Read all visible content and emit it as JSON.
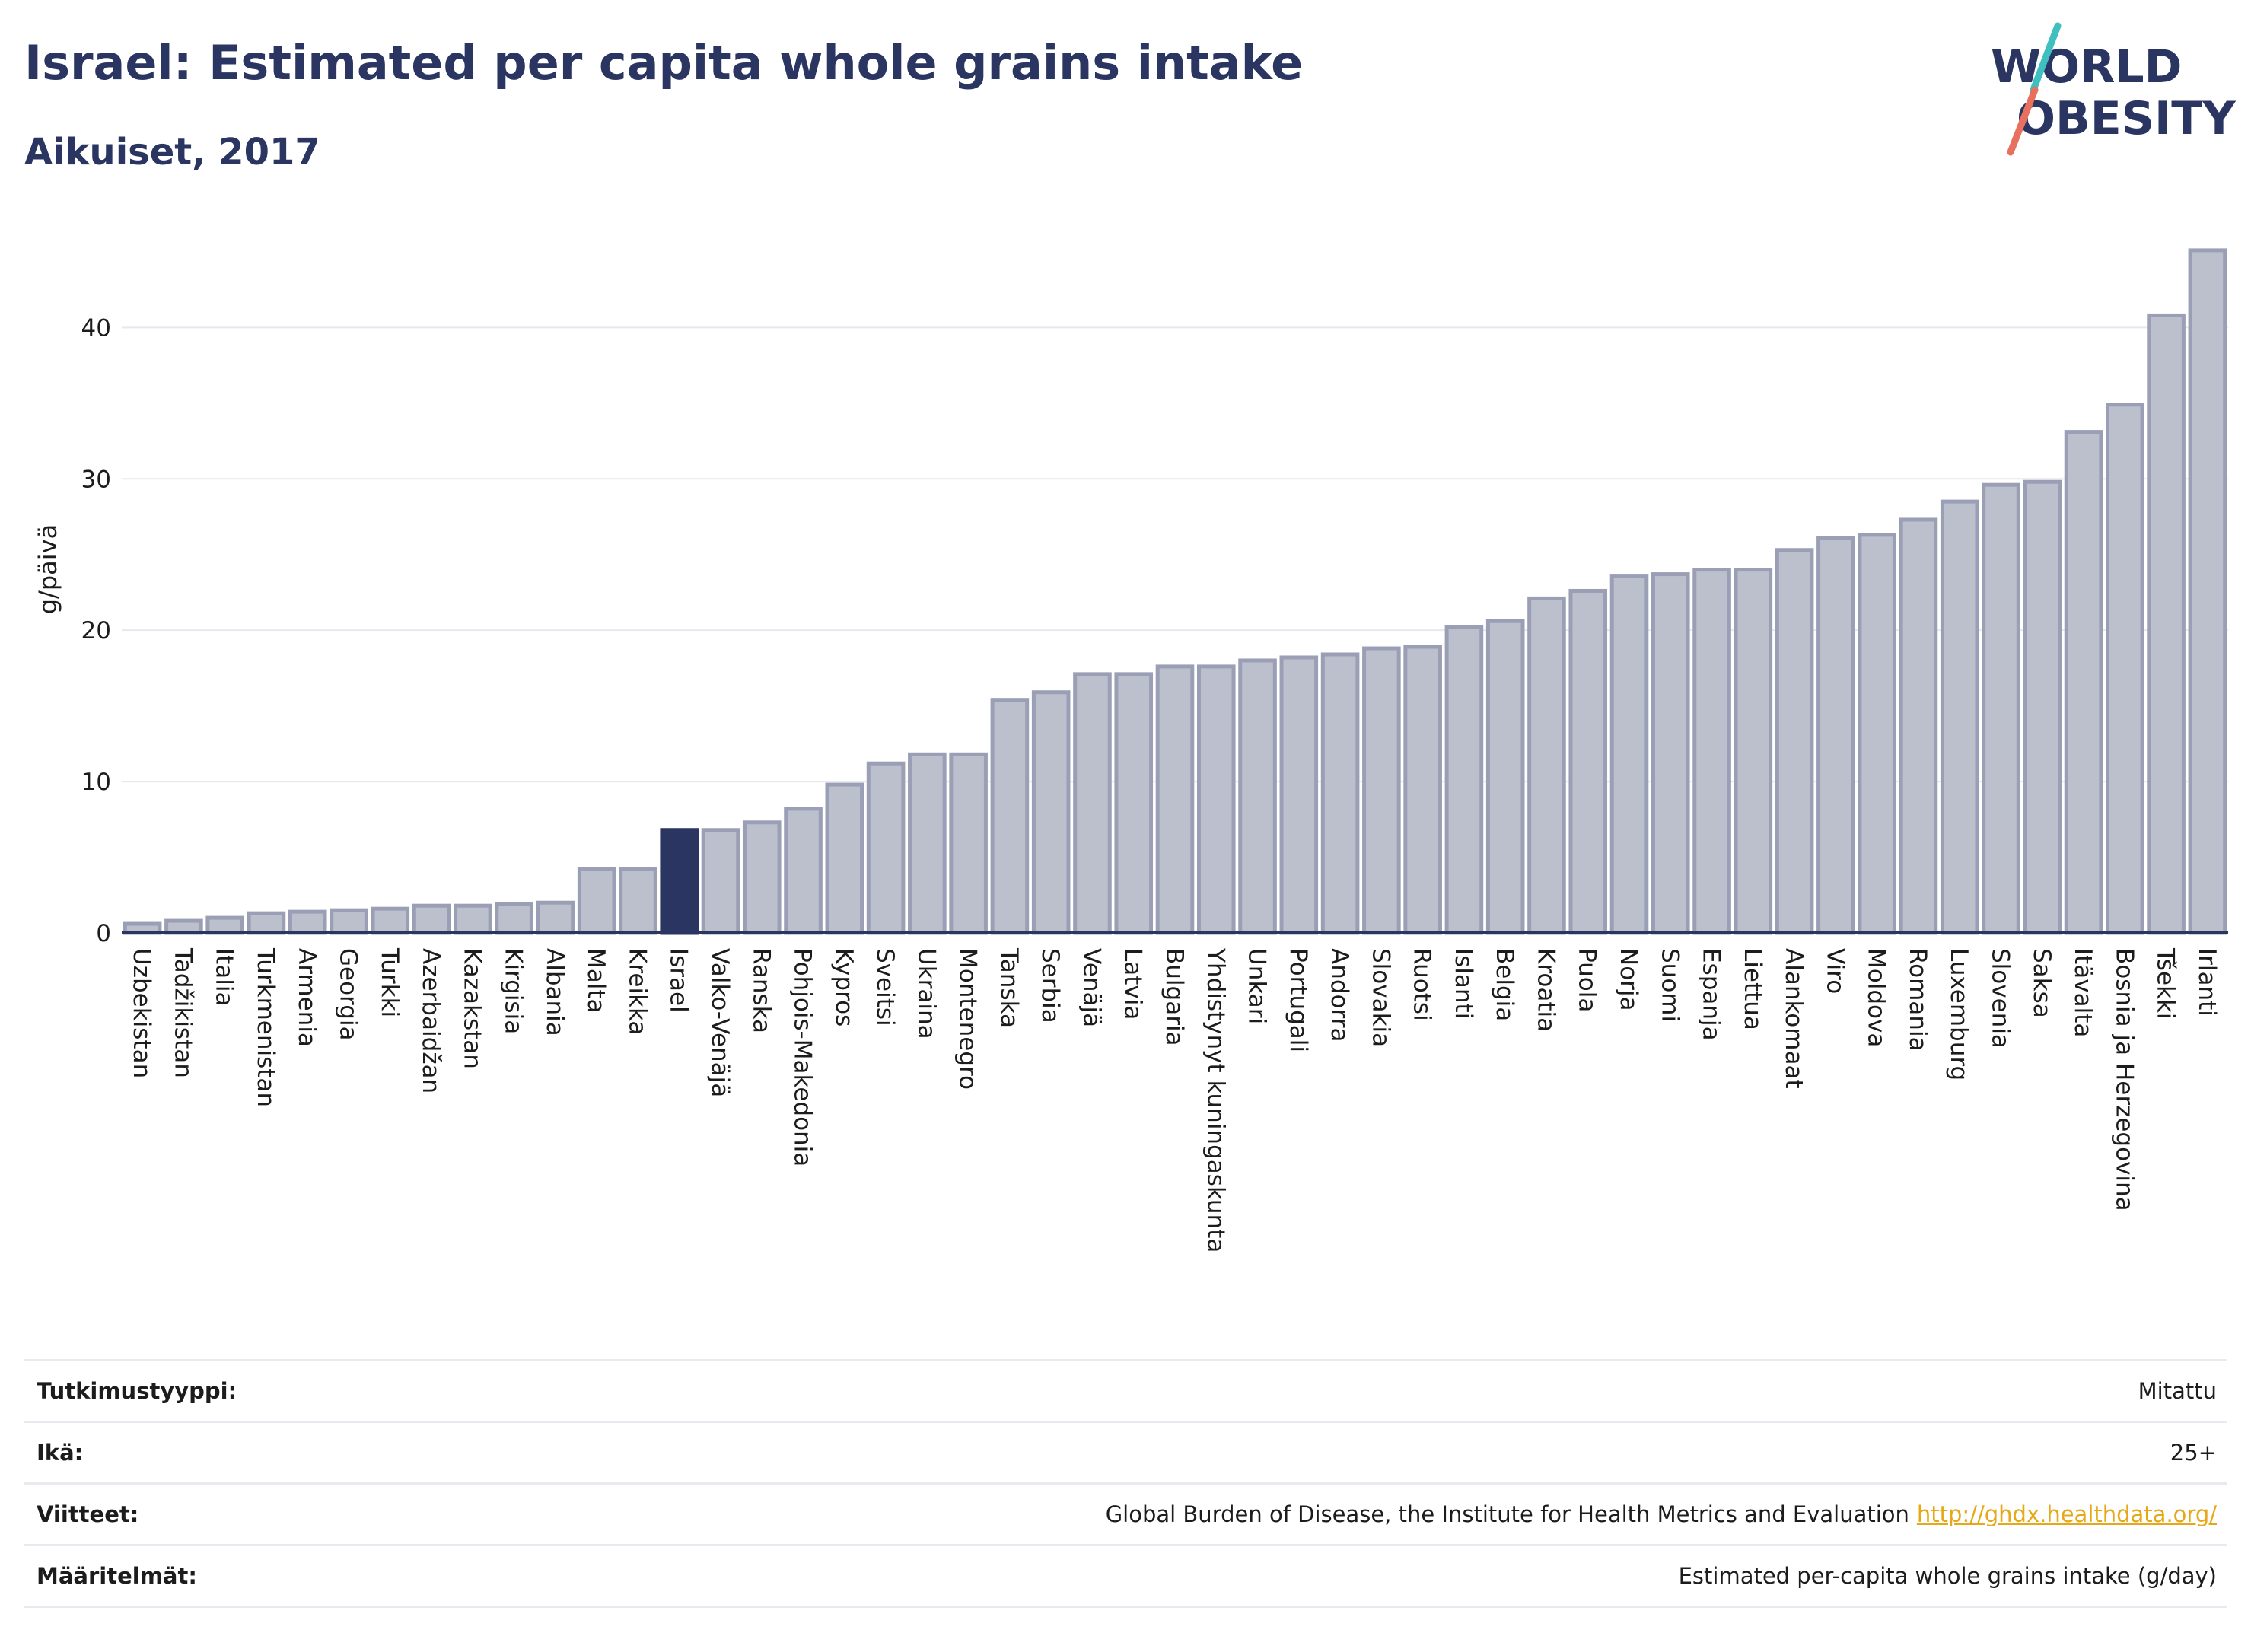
{
  "header": {
    "title": "Israel: Estimated per capita whole grains intake",
    "subtitle": "Aikuiset, 2017"
  },
  "logo": {
    "line1": "WORLD",
    "line2": "OBESITY"
  },
  "colors": {
    "highlight": "#2a3561",
    "bar_fill": "#bcc0cc",
    "bar_stroke": "#9a9fb6",
    "text": "#2a3561",
    "logo_teal": "#3fbfc0",
    "logo_coral": "#e8705f",
    "link": "#e6a817"
  },
  "chart_data": {
    "type": "bar",
    "ylabel": "g/päivä",
    "xlabel": "",
    "ylim": [
      0,
      46
    ],
    "yticks": [
      0,
      10,
      20,
      30,
      40
    ],
    "grid": true,
    "highlight": "Israel",
    "categories": [
      "Uzbekistan",
      "Tadžikistan",
      "Italia",
      "Turkmenistan",
      "Armenia",
      "Georgia",
      "Turkki",
      "Azerbaidžan",
      "Kazakstan",
      "Kirgisia",
      "Albania",
      "Malta",
      "Kreikka",
      "Israel",
      "Valko-Venäjä",
      "Ranska",
      "Pohjois-Makedonia",
      "Kypros",
      "Sveitsi",
      "Ukraina",
      "Montenegro",
      "Tanska",
      "Serbia",
      "Venäjä",
      "Latvia",
      "Bulgaria",
      "Yhdistynyt kuningaskunta",
      "Unkari",
      "Portugali",
      "Andorra",
      "Slovakia",
      "Ruotsi",
      "Islanti",
      "Belgia",
      "Kroatia",
      "Puola",
      "Norja",
      "Suomi",
      "Espanja",
      "Liettua",
      "Alankomaat",
      "Viro",
      "Moldova",
      "Romania",
      "Luxemburg",
      "Slovenia",
      "Saksa",
      "Itävalta",
      "Bosnia ja Herzegovina",
      "Tšekki",
      "Irlanti"
    ],
    "values": [
      0.6,
      0.8,
      1.0,
      1.3,
      1.4,
      1.5,
      1.6,
      1.8,
      1.8,
      1.9,
      2.0,
      4.2,
      4.2,
      6.8,
      6.8,
      7.3,
      8.2,
      9.8,
      11.2,
      11.8,
      11.8,
      15.4,
      15.9,
      17.1,
      17.1,
      17.6,
      17.6,
      18.0,
      18.2,
      18.4,
      18.8,
      18.9,
      20.2,
      20.6,
      22.1,
      22.6,
      23.6,
      23.7,
      24.0,
      24.0,
      25.3,
      26.1,
      26.3,
      27.3,
      28.5,
      29.6,
      29.8,
      33.1,
      34.9,
      40.8,
      45.1
    ]
  },
  "info": [
    {
      "label": "Tutkimustyyppi:",
      "value": "Mitattu"
    },
    {
      "label": "Ikä:",
      "value": "25+"
    },
    {
      "label": "Viitteet:",
      "value": "Global Burden of Disease, the Institute for Health Metrics and Evaluation",
      "link": "http://ghdx.healthdata.org/"
    },
    {
      "label": "Määritelmät:",
      "value": "Estimated per-capita whole grains intake (g/day)"
    }
  ]
}
